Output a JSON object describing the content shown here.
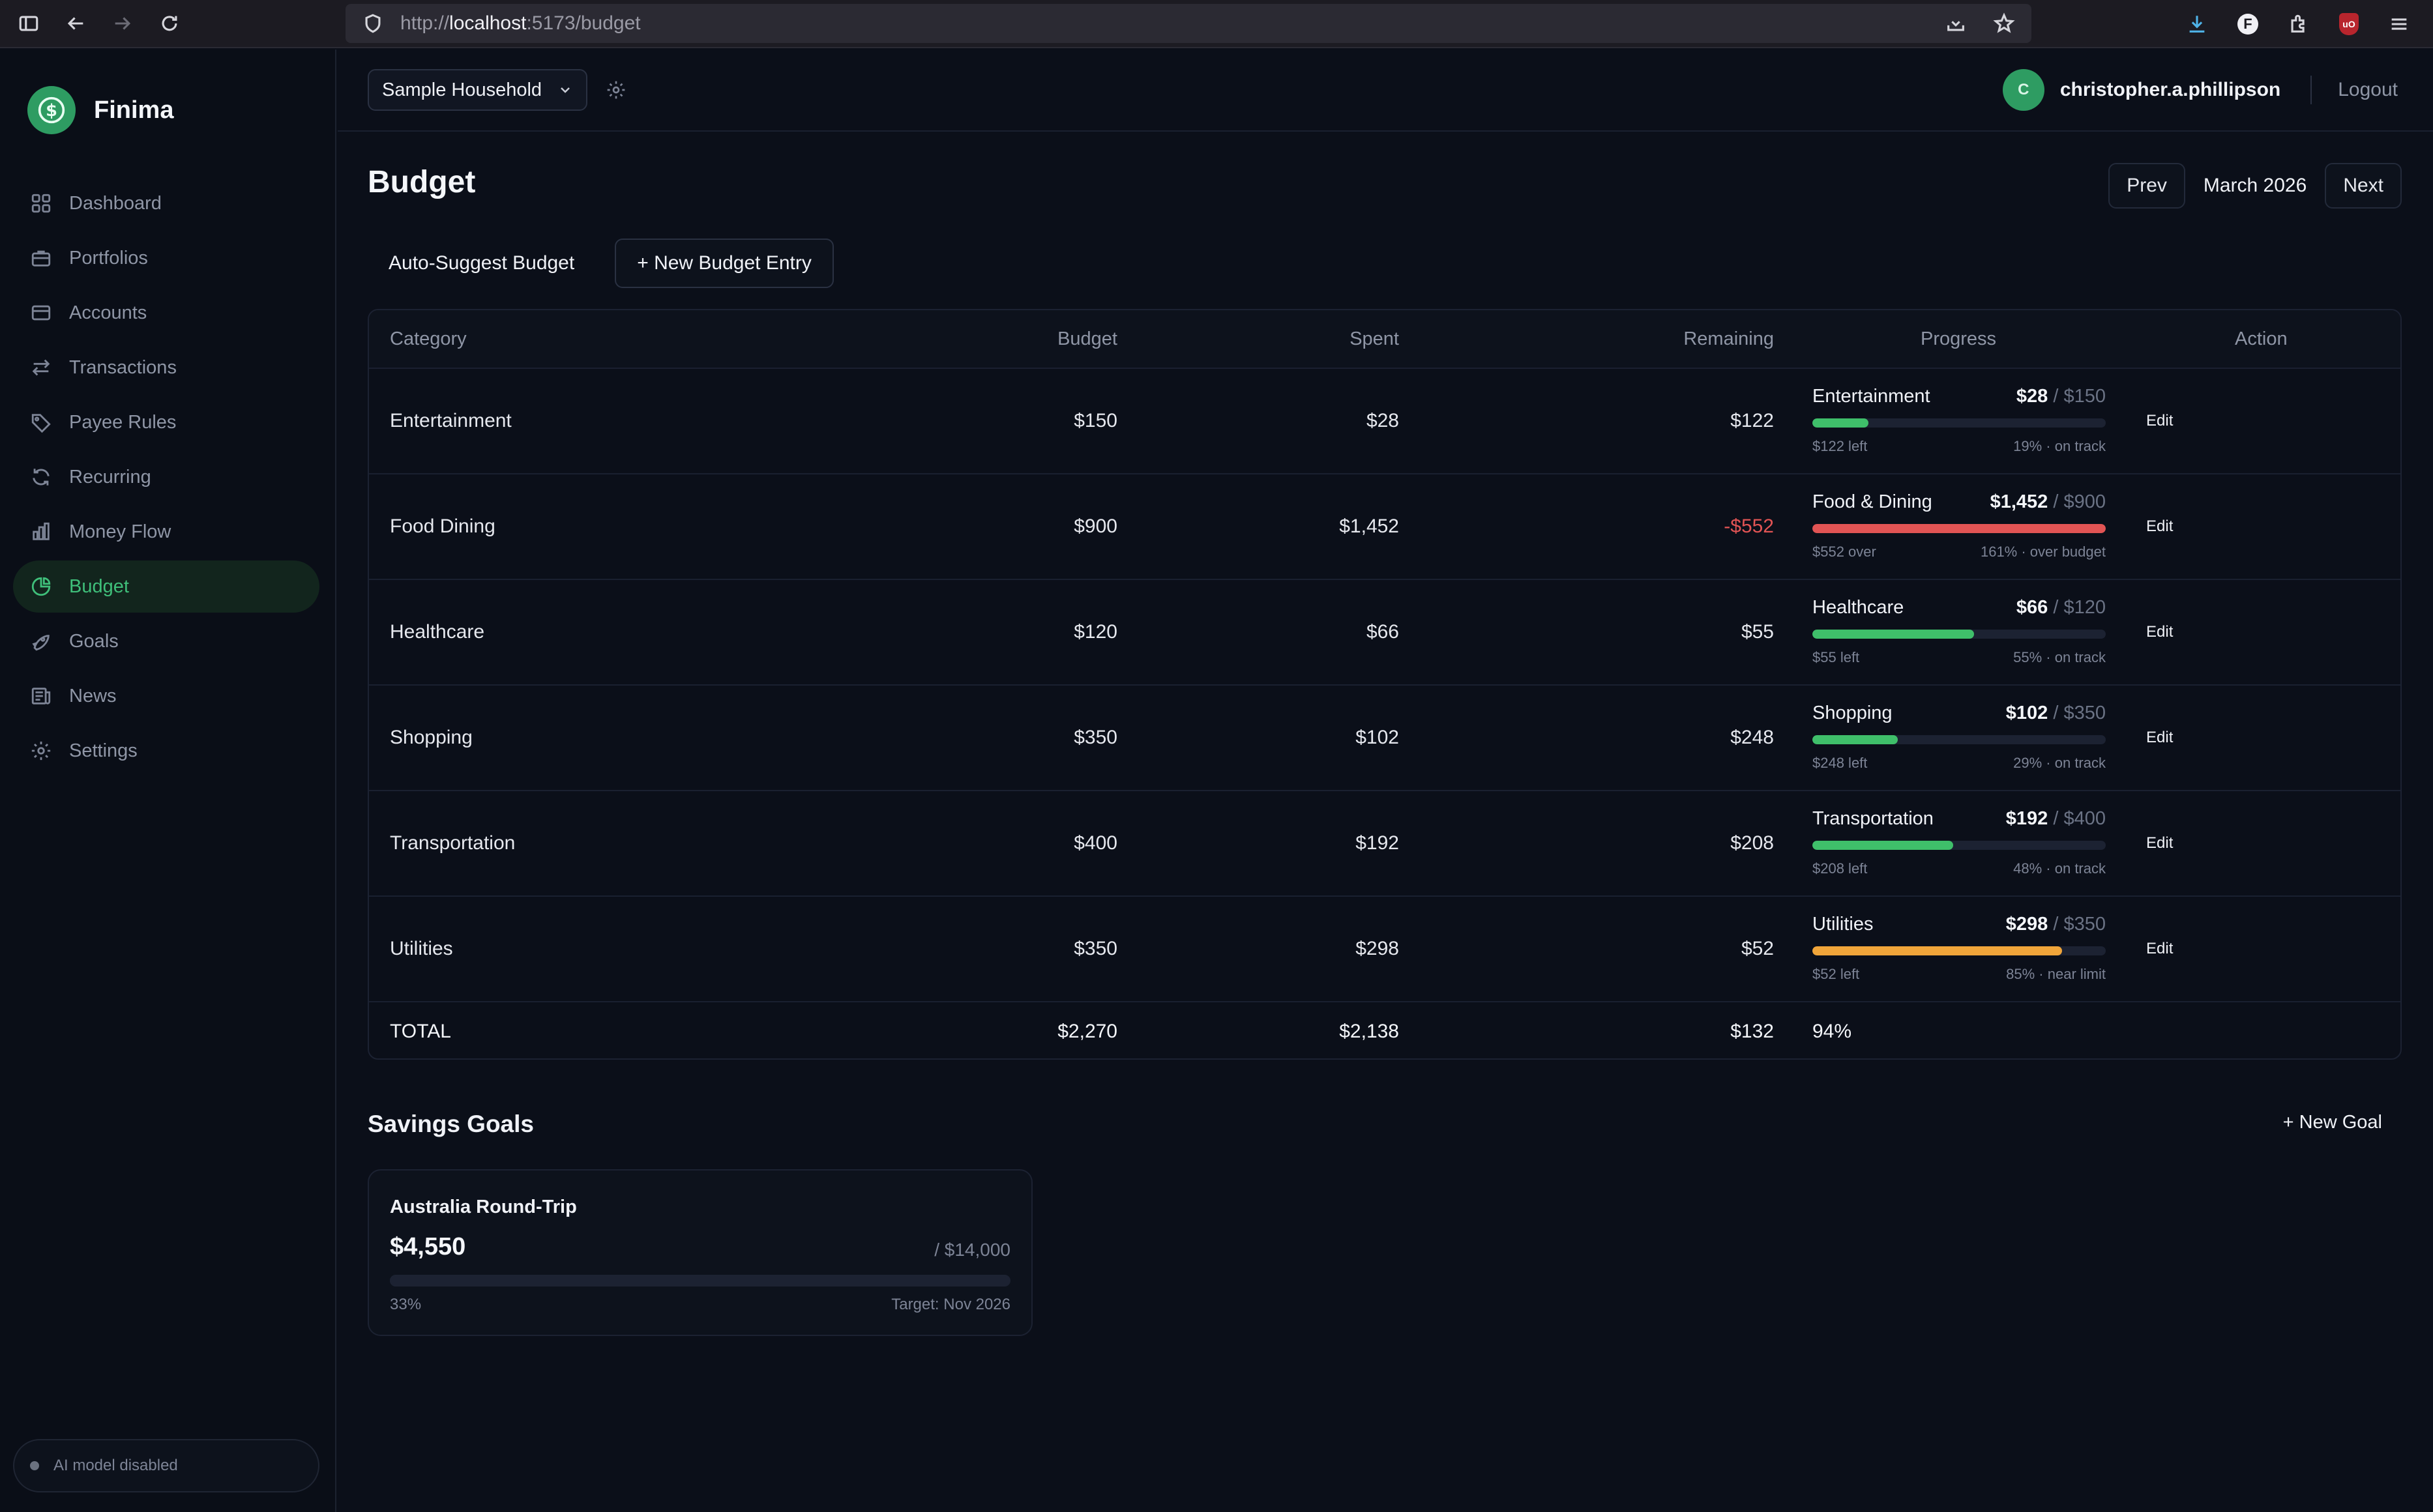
{
  "browser": {
    "url_scheme": "http://",
    "url_host": "localhost",
    "url_path": ":5173/budget"
  },
  "sidebar": {
    "brand": "Finima",
    "items": [
      {
        "label": "Dashboard",
        "icon": "grid-icon"
      },
      {
        "label": "Portfolios",
        "icon": "briefcase-icon"
      },
      {
        "label": "Accounts",
        "icon": "card-icon"
      },
      {
        "label": "Transactions",
        "icon": "arrows-icon"
      },
      {
        "label": "Payee Rules",
        "icon": "tag-icon"
      },
      {
        "label": "Recurring",
        "icon": "refresh-icon"
      },
      {
        "label": "Money Flow",
        "icon": "bar-chart-icon"
      },
      {
        "label": "Budget",
        "icon": "pie-icon",
        "active": true
      },
      {
        "label": "Goals",
        "icon": "rocket-icon"
      },
      {
        "label": "News",
        "icon": "newspaper-icon"
      },
      {
        "label": "Settings",
        "icon": "gear-icon"
      }
    ],
    "ai_status": "AI model disabled"
  },
  "header": {
    "household": "Sample Household",
    "avatar_initial": "C",
    "username": "christopher.a.phillipson",
    "logout": "Logout"
  },
  "page": {
    "title": "Budget",
    "prev": "Prev",
    "month": "March 2026",
    "next": "Next",
    "auto_suggest": "Auto-Suggest Budget",
    "new_entry": "+ New Budget Entry"
  },
  "colors": {
    "green": "#3fbf6a",
    "red": "#e25454",
    "orange": "#f0a53a",
    "accent": "#2e9c62"
  },
  "table": {
    "headers": {
      "category": "Category",
      "budget": "Budget",
      "spent": "Spent",
      "remaining": "Remaining",
      "progress": "Progress",
      "action": "Action"
    },
    "rows": [
      {
        "category": "Entertainment",
        "budget": "$150",
        "spent": "$28",
        "remaining": "$122",
        "negative": false,
        "prog_name": "Entertainment",
        "prog_spent": "$28",
        "prog_budget": "$150",
        "left_text": "$122 left",
        "status_text": "19% · on track",
        "progress": 0.19,
        "color": "green",
        "action": "Edit"
      },
      {
        "category": "Food Dining",
        "budget": "$900",
        "spent": "$1,452",
        "remaining": "-$552",
        "negative": true,
        "prog_name": "Food & Dining",
        "prog_spent": "$1,452",
        "prog_budget": "$900",
        "left_text": "$552 over",
        "status_text": "161% · over budget",
        "progress": 1.0,
        "color": "red",
        "action": "Edit"
      },
      {
        "category": "Healthcare",
        "budget": "$120",
        "spent": "$66",
        "remaining": "$55",
        "negative": false,
        "prog_name": "Healthcare",
        "prog_spent": "$66",
        "prog_budget": "$120",
        "left_text": "$55 left",
        "status_text": "55% · on track",
        "progress": 0.55,
        "color": "green",
        "action": "Edit"
      },
      {
        "category": "Shopping",
        "budget": "$350",
        "spent": "$102",
        "remaining": "$248",
        "negative": false,
        "prog_name": "Shopping",
        "prog_spent": "$102",
        "prog_budget": "$350",
        "left_text": "$248 left",
        "status_text": "29% · on track",
        "progress": 0.29,
        "color": "green",
        "action": "Edit"
      },
      {
        "category": "Transportation",
        "budget": "$400",
        "spent": "$192",
        "remaining": "$208",
        "negative": false,
        "prog_name": "Transportation",
        "prog_spent": "$192",
        "prog_budget": "$400",
        "left_text": "$208 left",
        "status_text": "48% · on track",
        "progress": 0.48,
        "color": "green",
        "action": "Edit"
      },
      {
        "category": "Utilities",
        "budget": "$350",
        "spent": "$298",
        "remaining": "$52",
        "negative": false,
        "prog_name": "Utilities",
        "prog_spent": "$298",
        "prog_budget": "$350",
        "left_text": "$52 left",
        "status_text": "85% · near limit",
        "progress": 0.85,
        "color": "orange",
        "action": "Edit"
      }
    ],
    "total": {
      "label": "TOTAL",
      "budget": "$2,270",
      "spent": "$2,138",
      "remaining": "$132",
      "percent": "94%"
    }
  },
  "savings": {
    "title": "Savings Goals",
    "new_goal": "+ New Goal",
    "goals": [
      {
        "name": "Australia Round-Trip",
        "saved": "$4,550",
        "target": "/ $14,000",
        "percent": "33%",
        "target_date": "Target: Nov 2026",
        "progress": 0.33
      }
    ]
  }
}
